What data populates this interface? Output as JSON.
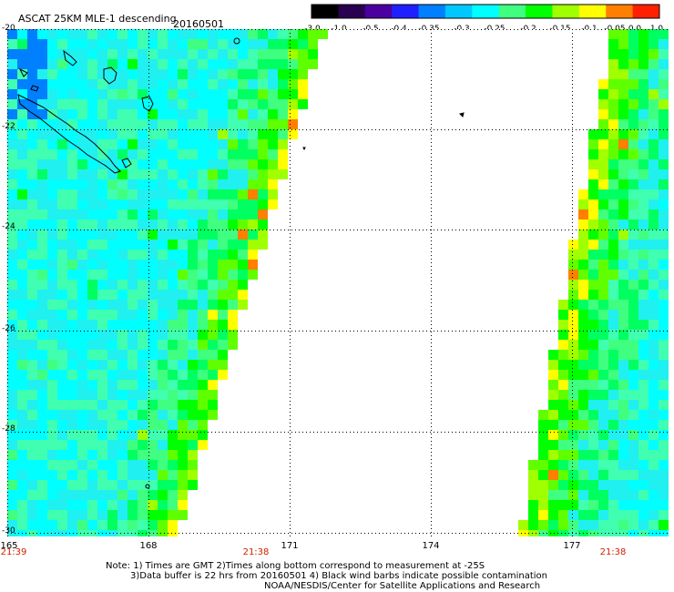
{
  "header": {
    "title": "ASCAT 25KM MLE-1 descending",
    "date": "20160501"
  },
  "colorbar": {
    "labels": [
      "-3.0",
      "-1.0",
      "-0.5",
      "-0.4",
      "-0.35",
      "-0.3",
      "-0.25",
      "-0.2",
      "-0.15",
      "-0.1",
      "-0.05",
      "0.0",
      "1.0"
    ],
    "colors": [
      "#000000",
      "#2a0050",
      "#4b00a0",
      "#2020ff",
      "#0080ff",
      "#00c8ff",
      "#00ffff",
      "#40ff80",
      "#00ff00",
      "#a0ff00",
      "#ffff00",
      "#ff8000",
      "#ff2000"
    ]
  },
  "axes": {
    "lat_labels": [
      "-20",
      "-22",
      "-24",
      "-26",
      "-28",
      "-30"
    ],
    "lon_labels": [
      "165",
      "168",
      "171",
      "174",
      "177"
    ],
    "lat_range": [
      -30,
      -20
    ],
    "lon_range": [
      165,
      178.3
    ]
  },
  "pass_times": {
    "left": "21:39",
    "middle": "21:38",
    "right": "21:38"
  },
  "footer": {
    "line1": "Note: 1) Times are GMT 2)Times along bottom correspond to measurement at -25S",
    "line2": "3)Data buffer is 22 hrs from 20160501 4) Black wind barbs indicate possible contamination",
    "line3": "NOAA/NESDIS/Center for Satellite Applications and Research"
  }
}
